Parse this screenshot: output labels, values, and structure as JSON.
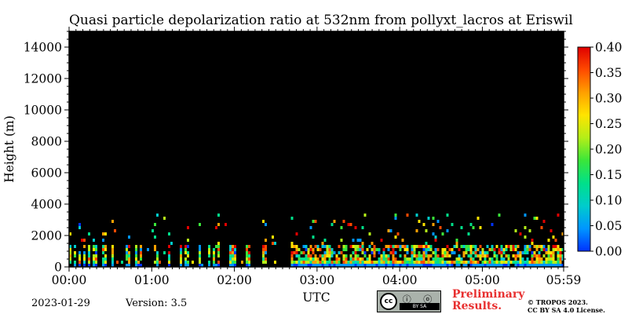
{
  "chart_data": {
    "type": "heatmap",
    "title": "Quasi particle depolarization ratio at 532nm from pollyxt_lacros at Eriswil",
    "xlabel": "UTC",
    "ylabel": "Height (m)",
    "xlim": [
      "00:00",
      "05:59"
    ],
    "x_ticks": [
      "00:00",
      "01:00",
      "02:00",
      "03:00",
      "04:00",
      "05:00",
      "05:59"
    ],
    "ylim": [
      0,
      15000
    ],
    "y_ticks": [
      0,
      2000,
      4000,
      6000,
      8000,
      10000,
      12000,
      14000
    ],
    "background_color": "#000000",
    "colorbar": {
      "range": [
        0.0,
        0.4
      ],
      "ticks": [
        "0.00",
        "0.05",
        "0.10",
        "0.15",
        "0.20",
        "0.25",
        "0.30",
        "0.35",
        "0.40"
      ],
      "colormap": [
        "#0032ff",
        "#0096ff",
        "#00cccc",
        "#00e08a",
        "#3ae63a",
        "#b4ee18",
        "#ffe400",
        "#ffa000",
        "#ff4a00",
        "#e00000"
      ]
    },
    "data_gap": {
      "start": "02:31",
      "end": "02:41"
    },
    "signal_regions": [
      {
        "start": "00:00",
        "end": "02:31",
        "max_height": 1500,
        "value_low": 0.02,
        "value_high": 0.4,
        "coverage": "sparse vertical streaks"
      },
      {
        "start": "02:41",
        "end": "05:59",
        "max_height": 1500,
        "value_low": 0.03,
        "value_high": 0.4,
        "coverage": "continuous layer"
      }
    ]
  },
  "footer": {
    "date": "2023-01-29",
    "version": "Version: 3.5",
    "license_badge": {
      "cc": "cc",
      "strip": "BY    SA",
      "icons": "ⓘ ⓞ"
    },
    "preliminary": "Preliminary Results.",
    "copyright_line1": "© TROPOS 2023.",
    "copyright_line2": "CC BY SA 4.0 License."
  }
}
